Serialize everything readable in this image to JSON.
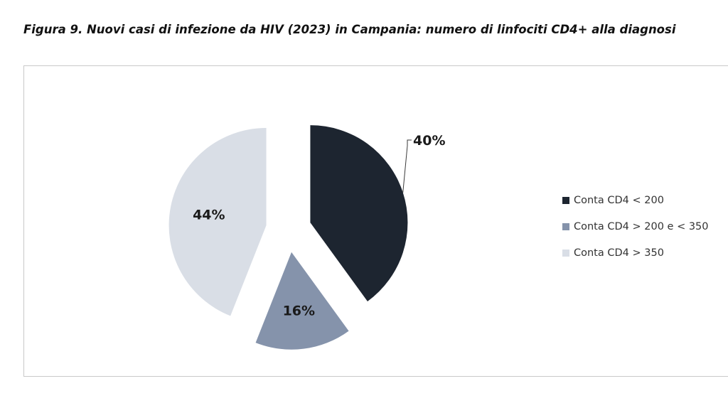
{
  "figure": {
    "title": "Figura 9.  Nuovi casi di infezione da HIV (2023) in Campania: numero di linfociti CD4+ alla diagnosi"
  },
  "chart_data": {
    "type": "pie",
    "title": "",
    "categories": [
      "Conta CD4 < 200",
      "Conta CD4 > 200 e < 350",
      "Conta CD4 > 350"
    ],
    "values": [
      40,
      16,
      44
    ],
    "data_labels": [
      "40%",
      "16%",
      "44%"
    ],
    "colors": [
      "#1d2530",
      "#8593ab",
      "#d9dee6"
    ],
    "exploded": true,
    "legend_position": "right"
  }
}
